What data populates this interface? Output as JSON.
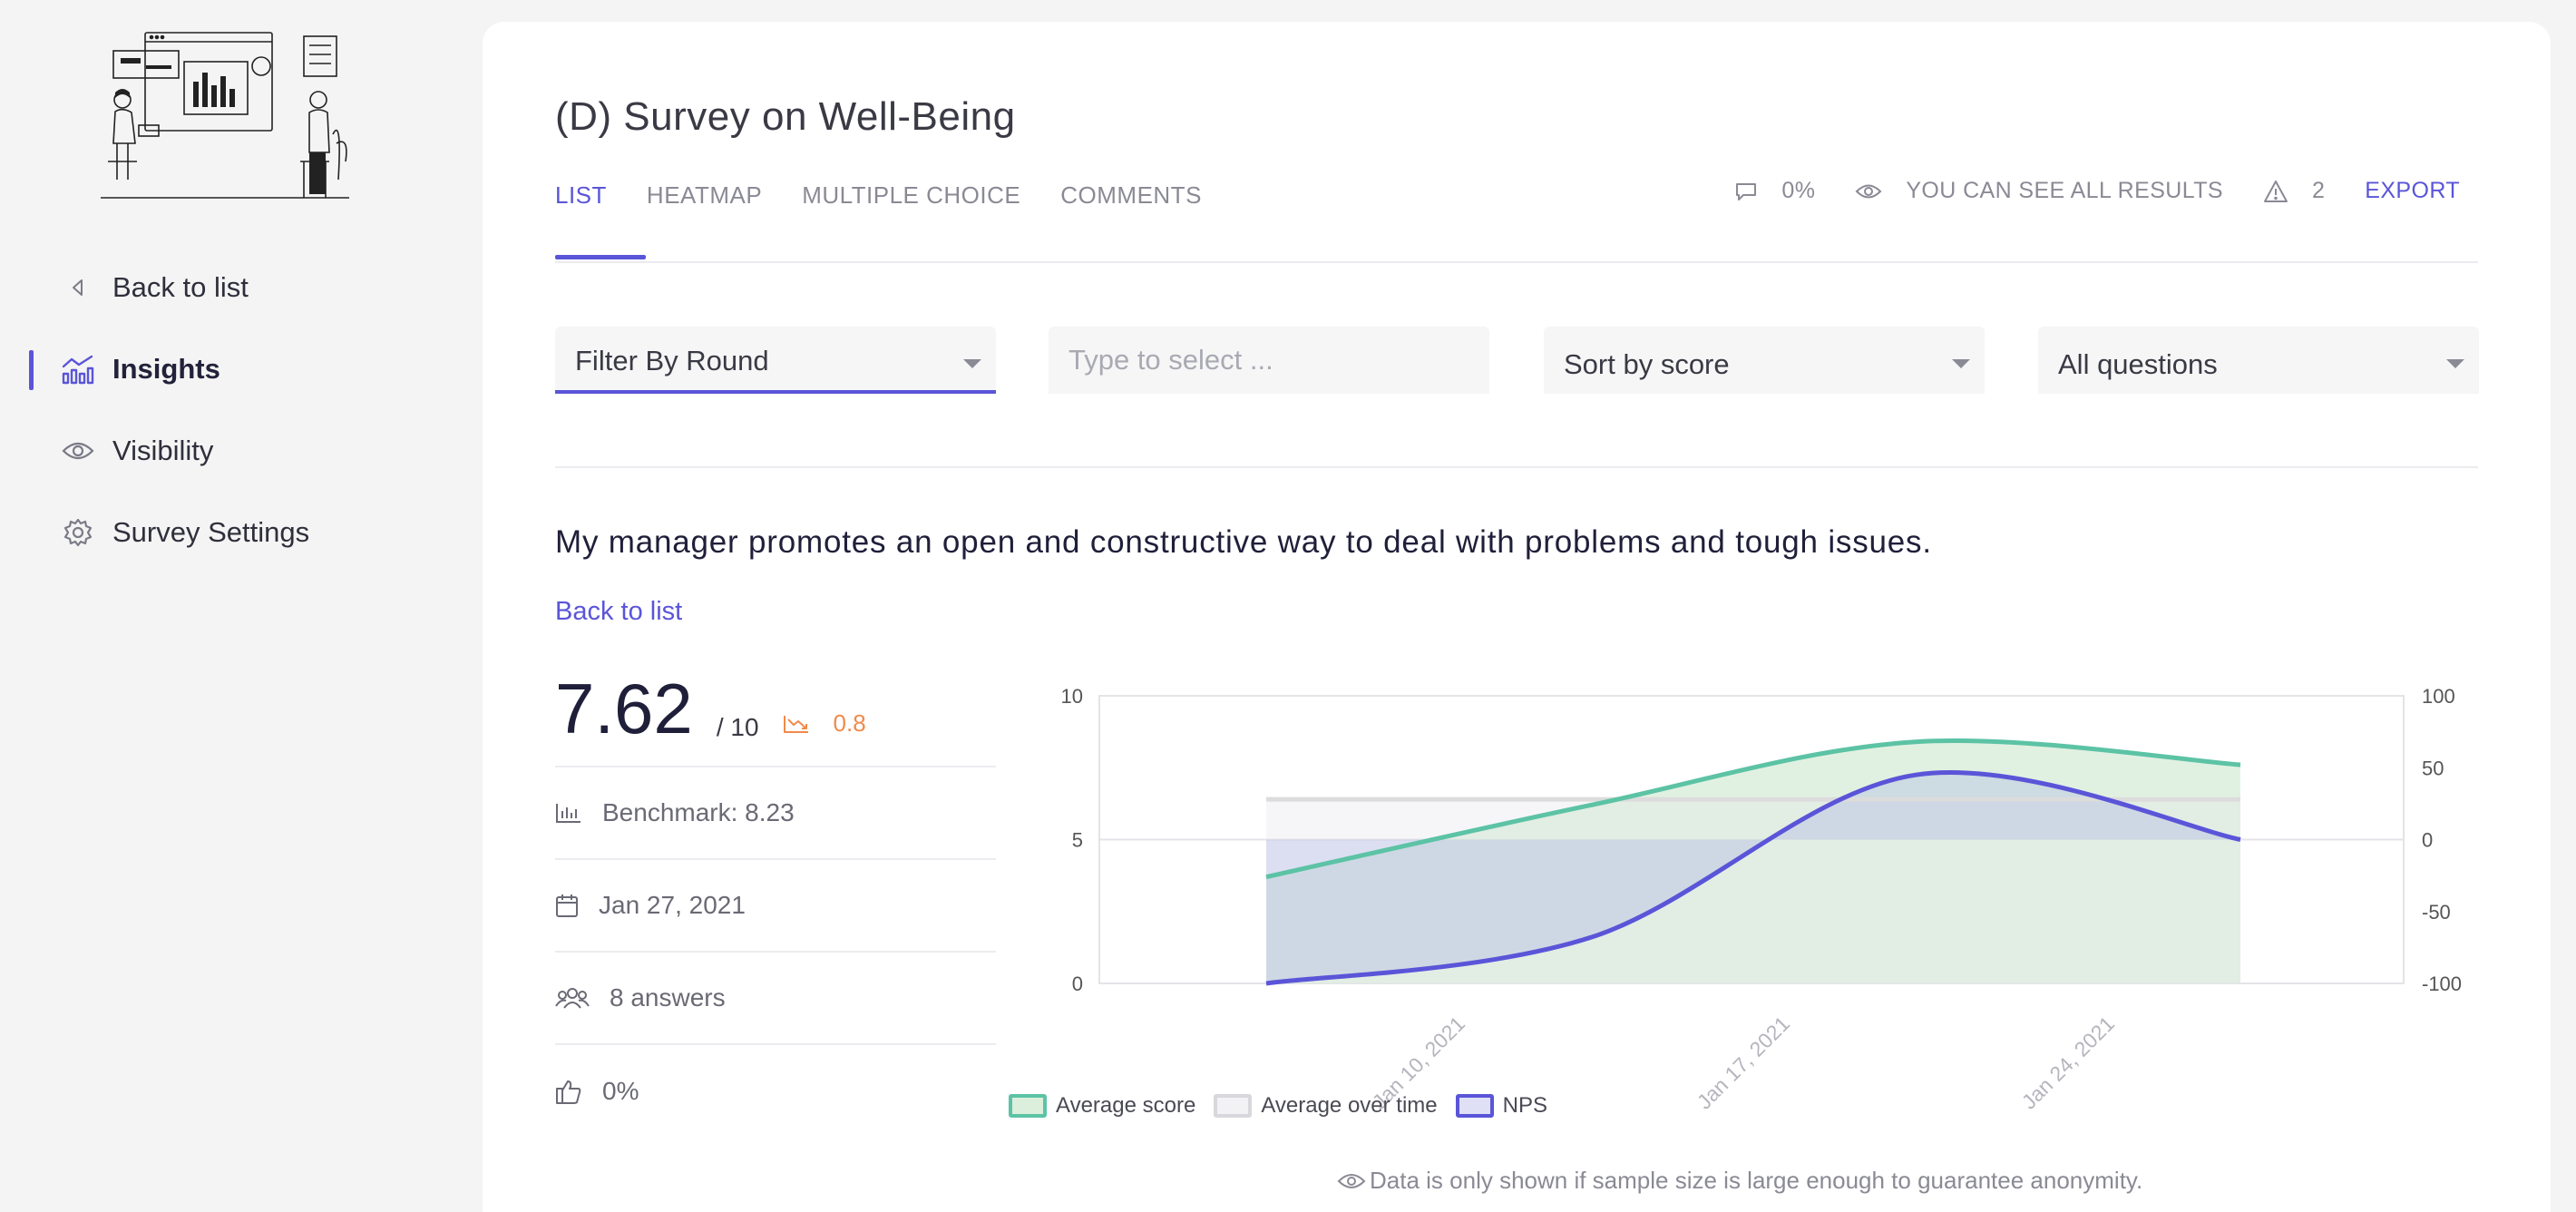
{
  "sidebar": {
    "items": [
      {
        "label": "Back to list",
        "icon": "caret-left-icon"
      },
      {
        "label": "Insights",
        "icon": "chart-icon",
        "active": true
      },
      {
        "label": "Visibility",
        "icon": "eye-icon"
      },
      {
        "label": "Survey Settings",
        "icon": "gear-icon"
      }
    ]
  },
  "header": {
    "title": "(D) Survey on Well-Being",
    "tabs": [
      "LIST",
      "HEATMAP",
      "MULTIPLE CHOICE",
      "COMMENTS"
    ],
    "active_tab": "LIST",
    "comments_pct": "0%",
    "visibility_text": "YOU CAN SEE ALL RESULTS",
    "warnings_count": "2",
    "export_label": "EXPORT"
  },
  "filters": {
    "round": "Filter By Round",
    "select_placeholder": "Type to select ...",
    "sort": "Sort by score",
    "questions": "All questions"
  },
  "question": {
    "text": "My manager promotes an open and constructive way to deal with problems and tough issues.",
    "back_link": "Back to list"
  },
  "stats": {
    "score": "7.62",
    "out_of": "/ 10",
    "trend": "0.8",
    "benchmark": "Benchmark: 8.23",
    "date": "Jan 27, 2021",
    "answers": "8 answers",
    "likes": "0%"
  },
  "colors": {
    "accent": "#5a55d8",
    "average_score": "#5cc3a5",
    "average_fill": "#dcefdc",
    "nps": "#5a55d8",
    "over_time": "#dcdcdc",
    "trend": "#f08a4b"
  },
  "chart_data": {
    "type": "area",
    "x": [
      "Jan 10, 2021",
      "Jan 17, 2021",
      "Jan 24, 2021"
    ],
    "x_range": [
      "Jan 6, 2021",
      "Jan 27, 2021"
    ],
    "series": [
      {
        "name": "Average score",
        "axis": "left",
        "points": [
          [
            "Jan 6, 2021",
            3.7
          ],
          [
            "Jan 13, 2021",
            6.2
          ],
          [
            "Jan 20, 2021",
            8.4
          ],
          [
            "Jan 27, 2021",
            7.6
          ]
        ]
      },
      {
        "name": "Average over time",
        "axis": "left",
        "constant": 6.4
      },
      {
        "name": "NPS",
        "axis": "right",
        "points": [
          [
            "Jan 6, 2021",
            -100
          ],
          [
            "Jan 13, 2021",
            -68
          ],
          [
            "Jan 20, 2021",
            45
          ],
          [
            "Jan 27, 2021",
            0
          ]
        ]
      }
    ],
    "y_left": {
      "ticks": [
        0,
        5,
        10
      ],
      "range": [
        0,
        10
      ]
    },
    "y_right": {
      "ticks": [
        -100,
        -50,
        0,
        50,
        100
      ],
      "range": [
        -100,
        100
      ]
    },
    "legend": "bottom",
    "grid": true
  },
  "footnote": "Data is only shown if sample size is large enough to guarantee anonymity."
}
